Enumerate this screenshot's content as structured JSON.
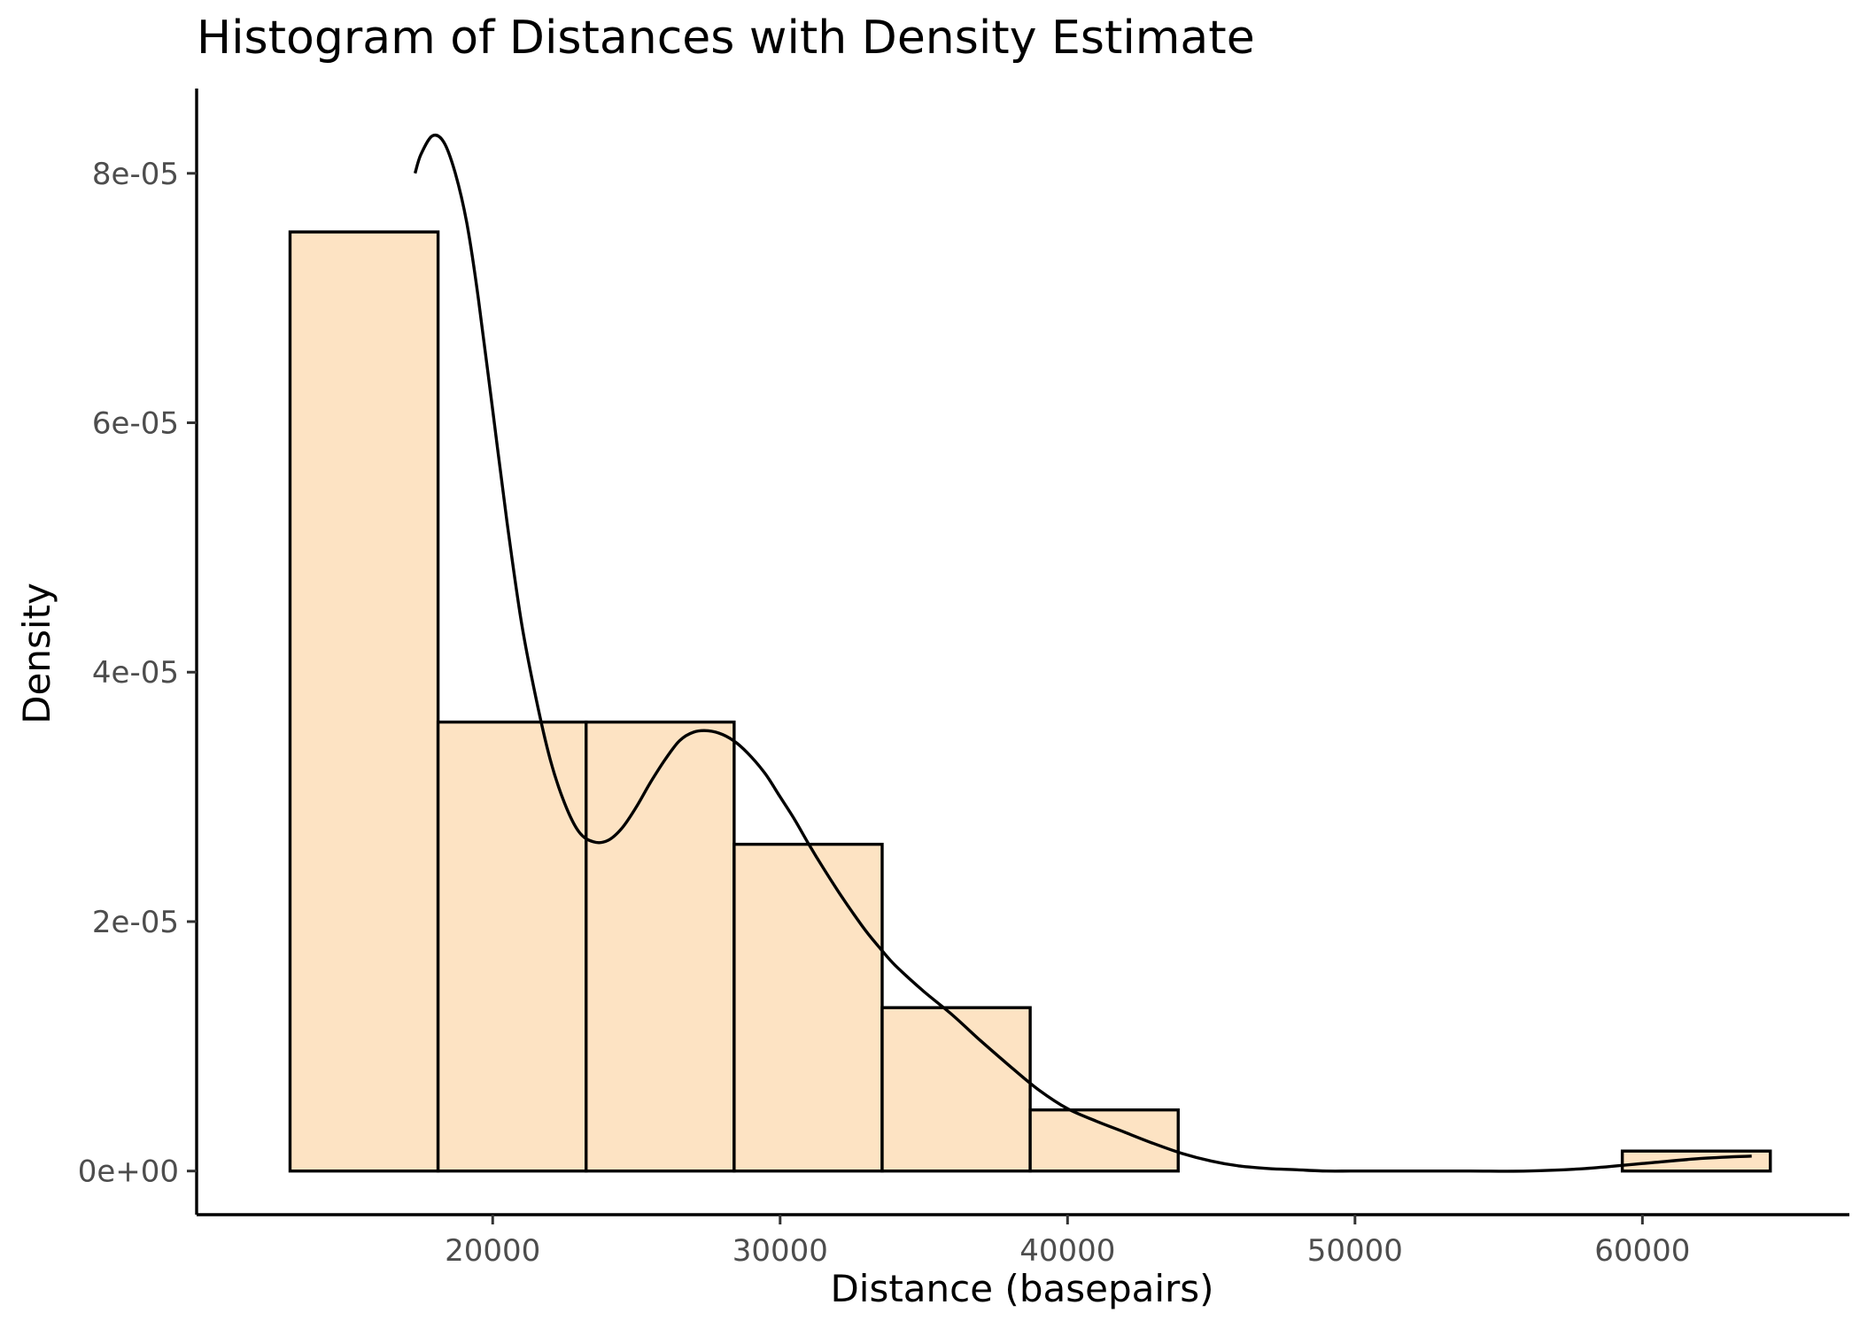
{
  "chart_data": {
    "type": "bar",
    "title": "Histogram of Distances with Density Estimate",
    "xlabel": "Distance (basepairs)",
    "ylabel": "Density",
    "xlim": [
      9700,
      67200
    ],
    "ylim": [
      -3.5e-06,
      8.68e-05
    ],
    "x_ticks": [
      {
        "value": 20000,
        "label": "20000"
      },
      {
        "value": 30000,
        "label": "30000"
      },
      {
        "value": 40000,
        "label": "40000"
      },
      {
        "value": 50000,
        "label": "50000"
      },
      {
        "value": 60000,
        "label": "60000"
      }
    ],
    "y_ticks": [
      {
        "value": 0,
        "label": "0e+00"
      },
      {
        "value": 2e-05,
        "label": "2e-05"
      },
      {
        "value": 4e-05,
        "label": "4e-05"
      },
      {
        "value": 6e-05,
        "label": "6e-05"
      },
      {
        "value": 8e-05,
        "label": "8e-05"
      }
    ],
    "bins": [
      {
        "start": 12950,
        "end": 18100,
        "density": 7.53e-05
      },
      {
        "start": 18100,
        "end": 23250,
        "density": 3.6e-05
      },
      {
        "start": 23250,
        "end": 28400,
        "density": 3.6e-05
      },
      {
        "start": 28400,
        "end": 33550,
        "density": 2.62e-05
      },
      {
        "start": 33550,
        "end": 38700,
        "density": 1.31e-05
      },
      {
        "start": 38700,
        "end": 43850,
        "density": 4.9e-06
      },
      {
        "start": 43850,
        "end": 49000,
        "density": 0
      },
      {
        "start": 49000,
        "end": 54150,
        "density": 0
      },
      {
        "start": 54150,
        "end": 59300,
        "density": 0
      },
      {
        "start": 59300,
        "end": 64450,
        "density": 1.6e-06
      }
    ],
    "density_curve": {
      "x": [
        17300,
        17500,
        17900,
        18300,
        18700,
        19100,
        19500,
        20000,
        20500,
        21000,
        21500,
        22000,
        22500,
        23000,
        23500,
        24000,
        24500,
        25000,
        25500,
        26000,
        26500,
        27000,
        27500,
        28000,
        28500,
        29000,
        29500,
        30000,
        30500,
        31000,
        31500,
        32000,
        32500,
        33000,
        33500,
        34000,
        35000,
        36000,
        37000,
        38000,
        39000,
        40000,
        41000,
        42000,
        43000,
        44000,
        45000,
        46000,
        47000,
        48000,
        49000,
        50000,
        52000,
        54000,
        56000,
        58000,
        60000,
        62000,
        63800
      ],
      "y": [
        8e-05,
        8.15e-05,
        8.3e-05,
        8.25e-05,
        8e-05,
        7.6e-05,
        7e-05,
        6.1e-05,
        5.2e-05,
        4.4e-05,
        3.8e-05,
        3.3e-05,
        2.95e-05,
        2.72e-05,
        2.64e-05,
        2.65e-05,
        2.75e-05,
        2.92e-05,
        3.12e-05,
        3.3e-05,
        3.45e-05,
        3.52e-05,
        3.53e-05,
        3.5e-05,
        3.43e-05,
        3.32e-05,
        3.18e-05,
        3e-05,
        2.82e-05,
        2.62e-05,
        2.43e-05,
        2.25e-05,
        2.08e-05,
        1.92e-05,
        1.78e-05,
        1.65e-05,
        1.44e-05,
        1.25e-05,
        1.04e-05,
        8.4e-06,
        6.5e-06,
        5e-06,
        4e-06,
        3.1e-06,
        2.2e-06,
        1.4e-06,
        8e-07,
        4e-07,
        2e-07,
        1e-07,
        0,
        0,
        0,
        0,
        0,
        2e-07,
        6e-07,
        1e-06,
        1.2e-06
      ]
    },
    "colors": {
      "bar_fill": "#fde3c3",
      "bar_stroke": "#000000",
      "curve": "#000000",
      "axis": "#000000",
      "tick_label": "#4d4d4d"
    },
    "grid": false,
    "legend": "none"
  }
}
